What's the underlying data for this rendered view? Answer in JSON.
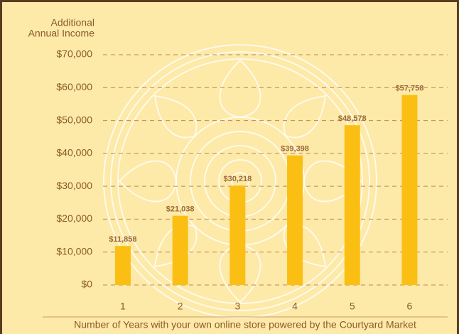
{
  "chart_data": {
    "type": "bar",
    "y_label": [
      "Additional",
      "Annual Income"
    ],
    "x_label": "Number of Years with your own online store powered by the Courtyard Market",
    "categories": [
      "1",
      "2",
      "3",
      "4",
      "5",
      "6"
    ],
    "values": [
      11858,
      21038,
      30218,
      39398,
      48578,
      57758
    ],
    "value_labels": [
      "$11,858",
      "$21,038",
      "$30,218",
      "$39,398",
      "$48,578",
      "$57,758"
    ],
    "color": "#fbbf14",
    "ylim": [
      0,
      70000
    ],
    "yticks": [
      {
        "value": 0,
        "label": "$0"
      },
      {
        "value": 10000,
        "label": "$10,000"
      },
      {
        "value": 20000,
        "label": "$20,000"
      },
      {
        "value": 30000,
        "label": "$30,000"
      },
      {
        "value": 40000,
        "label": "$40,000"
      },
      {
        "value": 50000,
        "label": "$50,000"
      },
      {
        "value": 60000,
        "label": "$60,000"
      },
      {
        "value": 70000,
        "label": "$70,000"
      }
    ],
    "grid": true
  }
}
